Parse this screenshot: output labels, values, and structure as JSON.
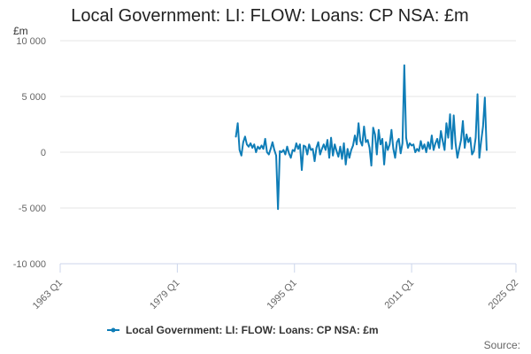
{
  "chart_data": {
    "type": "line",
    "title": "Local Government: LI: FLOW: Loans: CP NSA: £m",
    "unit_label": "£m",
    "source_label": "Source:",
    "ylim": [
      -10000,
      10000
    ],
    "y_ticks": [
      10000,
      5000,
      0,
      -5000,
      -10000
    ],
    "y_tick_labels": [
      "10 000",
      "5 000",
      "0",
      "-5 000",
      "-10 000"
    ],
    "xlim": [
      1963.0,
      2025.25
    ],
    "x_ticks": [
      1963.0,
      1979.0,
      1995.0,
      2011.0,
      2025.25
    ],
    "x_tick_labels": [
      "1963 Q1",
      "1979 Q1",
      "1995 Q1",
      "2011 Q1",
      "2025 Q2"
    ],
    "legend": {
      "placement": "bottom-center",
      "entries": [
        "Local Government: LI: FLOW: Loans: CP NSA: £m"
      ]
    },
    "series": [
      {
        "name": "Local Government: LI: FLOW: Loans: CP NSA: £m",
        "color": "#0f7db7",
        "points": [
          {
            "x": 1987.0,
            "y": 1400
          },
          {
            "x": 1987.25,
            "y": 2600
          },
          {
            "x": 1987.5,
            "y": 200
          },
          {
            "x": 1987.75,
            "y": -300
          },
          {
            "x": 1988.0,
            "y": 900
          },
          {
            "x": 1988.25,
            "y": 1400
          },
          {
            "x": 1988.5,
            "y": 700
          },
          {
            "x": 1988.75,
            "y": 500
          },
          {
            "x": 1989.0,
            "y": 800
          },
          {
            "x": 1989.25,
            "y": 400
          },
          {
            "x": 1989.5,
            "y": 700
          },
          {
            "x": 1989.75,
            "y": 0
          },
          {
            "x": 1990.0,
            "y": 500
          },
          {
            "x": 1990.25,
            "y": 300
          },
          {
            "x": 1990.5,
            "y": 600
          },
          {
            "x": 1990.75,
            "y": 300
          },
          {
            "x": 1991.0,
            "y": 1200
          },
          {
            "x": 1991.25,
            "y": 0
          },
          {
            "x": 1991.5,
            "y": -200
          },
          {
            "x": 1991.75,
            "y": 300
          },
          {
            "x": 1992.0,
            "y": 900
          },
          {
            "x": 1992.25,
            "y": 200
          },
          {
            "x": 1992.5,
            "y": -300
          },
          {
            "x": 1992.75,
            "y": -5100
          },
          {
            "x": 1993.0,
            "y": 100
          },
          {
            "x": 1993.25,
            "y": 0
          },
          {
            "x": 1993.5,
            "y": 200
          },
          {
            "x": 1993.75,
            "y": -200
          },
          {
            "x": 1994.0,
            "y": 500
          },
          {
            "x": 1994.25,
            "y": -100
          },
          {
            "x": 1994.5,
            "y": -500
          },
          {
            "x": 1994.75,
            "y": 200
          },
          {
            "x": 1995.0,
            "y": 100
          },
          {
            "x": 1995.25,
            "y": 800
          },
          {
            "x": 1995.5,
            "y": 300
          },
          {
            "x": 1995.75,
            "y": 700
          },
          {
            "x": 1996.0,
            "y": -1600
          },
          {
            "x": 1996.25,
            "y": 600
          },
          {
            "x": 1996.5,
            "y": 500
          },
          {
            "x": 1996.75,
            "y": -200
          },
          {
            "x": 1997.0,
            "y": 700
          },
          {
            "x": 1997.25,
            "y": 200
          },
          {
            "x": 1997.5,
            "y": 300
          },
          {
            "x": 1997.75,
            "y": -800
          },
          {
            "x": 1998.0,
            "y": 400
          },
          {
            "x": 1998.25,
            "y": 900
          },
          {
            "x": 1998.5,
            "y": -200
          },
          {
            "x": 1998.75,
            "y": 300
          },
          {
            "x": 1999.0,
            "y": 700
          },
          {
            "x": 1999.25,
            "y": 200
          },
          {
            "x": 1999.5,
            "y": 1100
          },
          {
            "x": 1999.75,
            "y": -500
          },
          {
            "x": 2000.0,
            "y": 1300
          },
          {
            "x": 2000.25,
            "y": -300
          },
          {
            "x": 2000.5,
            "y": 700
          },
          {
            "x": 2000.75,
            "y": 100
          },
          {
            "x": 2001.0,
            "y": -400
          },
          {
            "x": 2001.25,
            "y": 500
          },
          {
            "x": 2001.5,
            "y": -600
          },
          {
            "x": 2001.75,
            "y": 800
          },
          {
            "x": 2002.0,
            "y": -1100
          },
          {
            "x": 2002.25,
            "y": 300
          },
          {
            "x": 2002.5,
            "y": -500
          },
          {
            "x": 2002.75,
            "y": 200
          },
          {
            "x": 2003.0,
            "y": 600
          },
          {
            "x": 2003.25,
            "y": 1500
          },
          {
            "x": 2003.5,
            "y": 700
          },
          {
            "x": 2003.75,
            "y": 2600
          },
          {
            "x": 2004.0,
            "y": 1000
          },
          {
            "x": 2004.25,
            "y": 600
          },
          {
            "x": 2004.5,
            "y": 2300
          },
          {
            "x": 2004.75,
            "y": 900
          },
          {
            "x": 2005.0,
            "y": 1100
          },
          {
            "x": 2005.25,
            "y": 400
          },
          {
            "x": 2005.5,
            "y": -1200
          },
          {
            "x": 2005.75,
            "y": 2200
          },
          {
            "x": 2006.0,
            "y": 1600
          },
          {
            "x": 2006.25,
            "y": -200
          },
          {
            "x": 2006.5,
            "y": 2000
          },
          {
            "x": 2006.75,
            "y": 700
          },
          {
            "x": 2007.0,
            "y": 1200
          },
          {
            "x": 2007.25,
            "y": -1100
          },
          {
            "x": 2007.5,
            "y": 900
          },
          {
            "x": 2007.75,
            "y": 200
          },
          {
            "x": 2008.0,
            "y": 700
          },
          {
            "x": 2008.25,
            "y": 2000
          },
          {
            "x": 2008.5,
            "y": 300
          },
          {
            "x": 2008.75,
            "y": -500
          },
          {
            "x": 2009.0,
            "y": 900
          },
          {
            "x": 2009.25,
            "y": 1200
          },
          {
            "x": 2009.5,
            "y": -100
          },
          {
            "x": 2009.75,
            "y": 800
          },
          {
            "x": 2010.0,
            "y": 7800
          },
          {
            "x": 2010.25,
            "y": 1300
          },
          {
            "x": 2010.5,
            "y": 400
          },
          {
            "x": 2010.75,
            "y": 800
          },
          {
            "x": 2011.0,
            "y": 600
          },
          {
            "x": 2011.25,
            "y": 700
          },
          {
            "x": 2011.5,
            "y": 0
          },
          {
            "x": 2011.75,
            "y": 300
          },
          {
            "x": 2012.0,
            "y": 100
          },
          {
            "x": 2012.25,
            "y": 1000
          },
          {
            "x": 2012.5,
            "y": 300
          },
          {
            "x": 2012.75,
            "y": 700
          },
          {
            "x": 2013.0,
            "y": 0
          },
          {
            "x": 2013.25,
            "y": 900
          },
          {
            "x": 2013.5,
            "y": 300
          },
          {
            "x": 2013.75,
            "y": 1500
          },
          {
            "x": 2014.0,
            "y": 200
          },
          {
            "x": 2014.25,
            "y": 800
          },
          {
            "x": 2014.5,
            "y": 1200
          },
          {
            "x": 2014.75,
            "y": 400
          },
          {
            "x": 2015.0,
            "y": 1900
          },
          {
            "x": 2015.25,
            "y": 1000
          },
          {
            "x": 2015.5,
            "y": 200
          },
          {
            "x": 2015.75,
            "y": 2600
          },
          {
            "x": 2016.0,
            "y": 1300
          },
          {
            "x": 2016.25,
            "y": 3400
          },
          {
            "x": 2016.5,
            "y": 300
          },
          {
            "x": 2016.75,
            "y": 3300
          },
          {
            "x": 2017.0,
            "y": 800
          },
          {
            "x": 2017.25,
            "y": -500
          },
          {
            "x": 2017.5,
            "y": 300
          },
          {
            "x": 2017.75,
            "y": 1100
          },
          {
            "x": 2018.0,
            "y": 2800
          },
          {
            "x": 2018.25,
            "y": 400
          },
          {
            "x": 2018.5,
            "y": 1600
          },
          {
            "x": 2018.75,
            "y": 900
          },
          {
            "x": 2019.0,
            "y": 1300
          },
          {
            "x": 2019.25,
            "y": -200
          },
          {
            "x": 2019.5,
            "y": 100
          },
          {
            "x": 2019.75,
            "y": 1300
          },
          {
            "x": 2020.0,
            "y": 5200
          },
          {
            "x": 2020.25,
            "y": -500
          },
          {
            "x": 2020.5,
            "y": 1000
          },
          {
            "x": 2020.75,
            "y": 2300
          },
          {
            "x": 2021.0,
            "y": 4900
          },
          {
            "x": 2021.25,
            "y": 200
          }
        ]
      }
    ]
  }
}
